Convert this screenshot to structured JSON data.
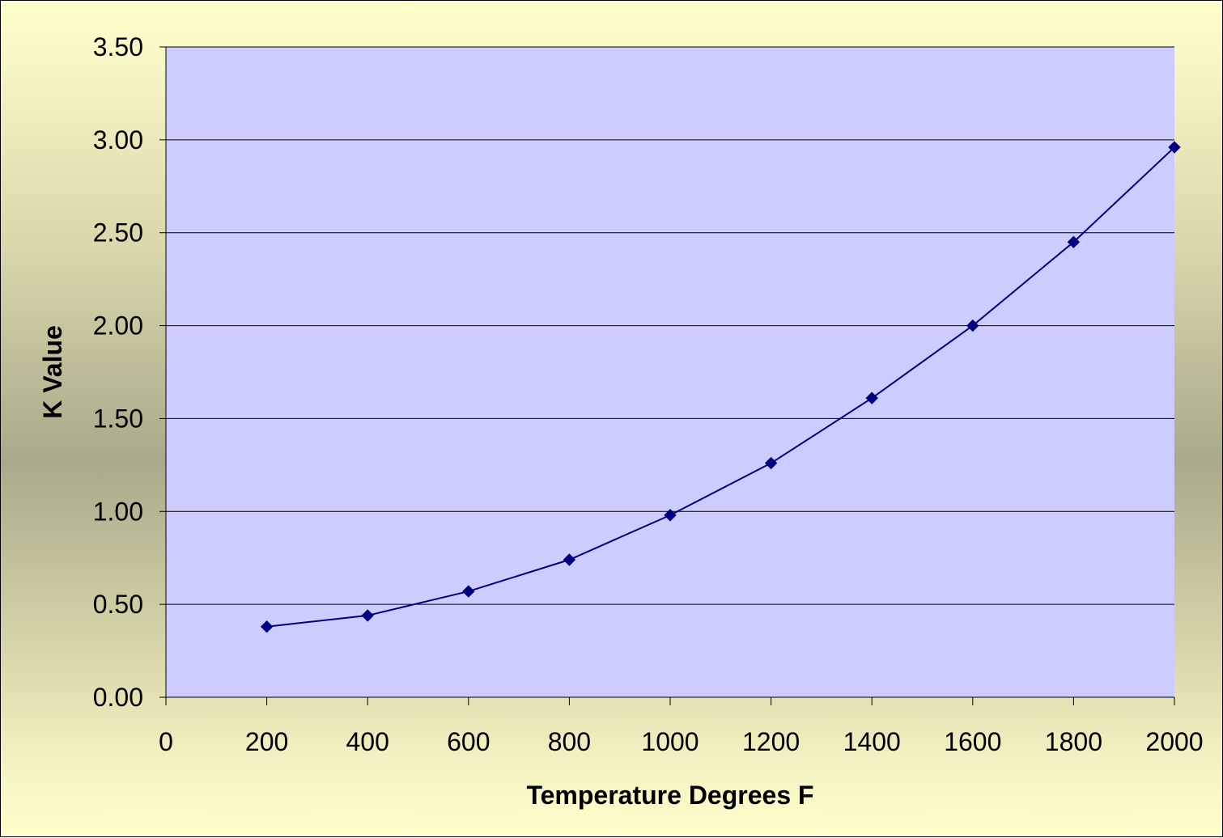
{
  "chart_data": {
    "type": "line",
    "title": "",
    "xlabel": "Temperature Degrees F",
    "ylabel": "K Value",
    "xlim": [
      0,
      2000
    ],
    "ylim": [
      0,
      3.5
    ],
    "x_ticks": [
      "0",
      "200",
      "400",
      "600",
      "800",
      "1000",
      "1200",
      "1400",
      "1600",
      "1800",
      "2000"
    ],
    "y_ticks": [
      "0.00",
      "0.50",
      "1.00",
      "1.50",
      "2.00",
      "2.50",
      "3.00",
      "3.50"
    ],
    "grid": "horizontal",
    "legend": "none",
    "series": [
      {
        "x": [
          200,
          400,
          600,
          800,
          1000,
          1200,
          1400,
          1600,
          1800,
          2000
        ],
        "values": [
          0.38,
          0.44,
          0.57,
          0.74,
          0.98,
          1.26,
          1.61,
          2.0,
          2.45,
          2.96
        ],
        "color": "#000080",
        "marker": "diamond"
      }
    ],
    "colors": {
      "plot_area": "#ccccff",
      "line": "#000080",
      "gridline": "#000000"
    }
  }
}
